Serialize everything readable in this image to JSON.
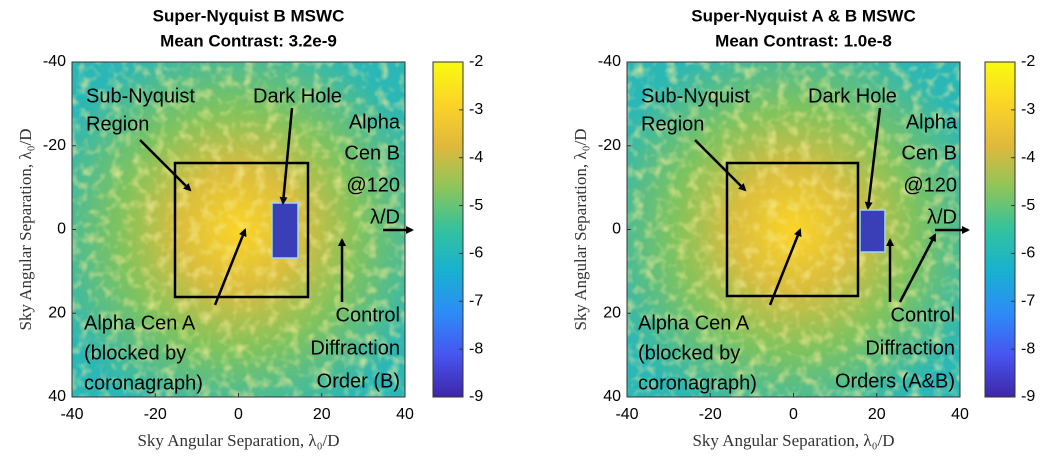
{
  "chart_data": [
    {
      "type": "image",
      "title": "Super-Nyquist B MSWC",
      "subtitle": "Mean Contrast: 3.2e-9",
      "xlabel": "Sky Angular Separation, λ₀/D",
      "ylabel": "Sky Angular Separation, λ₀/D",
      "xlim": [
        -40,
        40
      ],
      "ylim": [
        -40,
        40
      ],
      "xticks": [
        -40,
        -20,
        0,
        20,
        40
      ],
      "yticks": [
        -40,
        -20,
        0,
        20,
        40
      ],
      "clim": [
        -9,
        -2
      ],
      "cticks": [
        -9,
        -8,
        -7,
        -6,
        -5,
        -4,
        -3,
        -2
      ],
      "colormap": [
        "#3e26a8",
        "#4755f0",
        "#2d8bf7",
        "#18b1d0",
        "#33c29d",
        "#8dc55a",
        "#e0b93c",
        "#fbd427",
        "#f9fb0e"
      ],
      "annotations": [
        [
          "Sub-Nyquist",
          "Region"
        ],
        [
          "Dark Hole"
        ],
        [
          "Alpha",
          "Cen B",
          "@120",
          "λ/D"
        ],
        [
          "Alpha Cen A",
          "(blocked by",
          "coronagraph)"
        ],
        [
          "Control",
          "Diffraction",
          "Order  (B)"
        ]
      ]
    },
    {
      "type": "image",
      "title": "Super-Nyquist A & B MSWC",
      "subtitle": "Mean Contrast: 1.0e-8",
      "xlabel": "Sky Angular Separation, λ₀/D",
      "ylabel": "Sky Angular Separation, λ₀/D",
      "xlim": [
        -40,
        40
      ],
      "ylim": [
        -40,
        40
      ],
      "xticks": [
        -40,
        -20,
        0,
        20,
        40
      ],
      "yticks": [
        -40,
        -20,
        0,
        20,
        40
      ],
      "clim": [
        -9,
        -2
      ],
      "cticks": [
        -9,
        -8,
        -7,
        -6,
        -5,
        -4,
        -3,
        -2
      ],
      "colormap": [
        "#3e26a8",
        "#4755f0",
        "#2d8bf7",
        "#18b1d0",
        "#33c29d",
        "#8dc55a",
        "#e0b93c",
        "#fbd427",
        "#f9fb0e"
      ],
      "annotations": [
        [
          "Sub-Nyquist",
          "Region"
        ],
        [
          "Dark Hole"
        ],
        [
          "Alpha",
          "Cen B",
          "@120",
          "λ/D"
        ],
        [
          "Alpha Cen A",
          "(blocked by",
          "coronagraph)"
        ],
        [
          "Control",
          "Diffraction",
          "Orders (A&B)"
        ]
      ]
    }
  ]
}
